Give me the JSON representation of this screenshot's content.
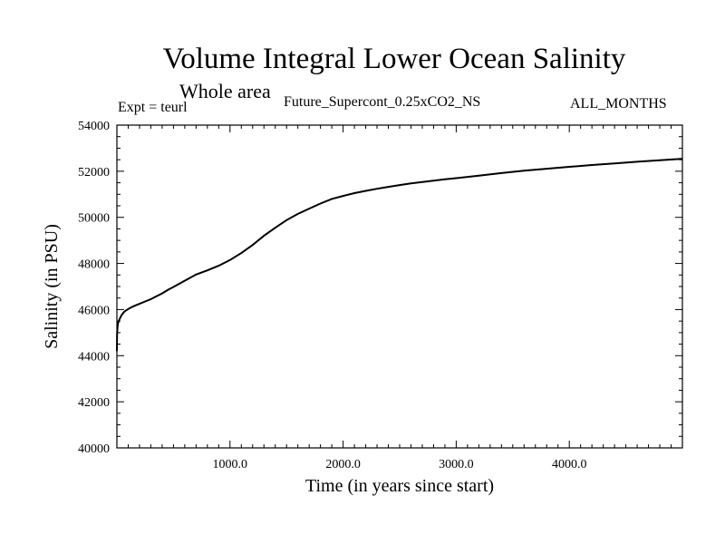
{
  "header": {
    "title": "Volume Integral Lower Ocean Salinity",
    "subtitle": "Whole area",
    "experiment": "Expt = teurl",
    "run_name": "Future_Supercont_0.25xCO2_NS",
    "months": "ALL_MONTHS"
  },
  "chart_data": {
    "type": "line",
    "title": "Volume Integral Lower Ocean Salinity",
    "xlabel": "Time (in years since start)",
    "ylabel": "Salinity (in PSU)",
    "xlim": [
      0,
      5000
    ],
    "ylim": [
      40000,
      54000
    ],
    "x_ticks": [
      1000,
      2000,
      3000,
      4000
    ],
    "x_tick_labels": [
      "1000.0",
      "2000.0",
      "3000.0",
      "4000.0"
    ],
    "y_ticks": [
      40000,
      42000,
      44000,
      46000,
      48000,
      50000,
      52000,
      54000
    ],
    "y_tick_labels": [
      "40000",
      "42000",
      "44000",
      "46000",
      "48000",
      "50000",
      "52000",
      "54000"
    ],
    "grid": false,
    "series": [
      {
        "color": "#000000",
        "x": [
          0,
          2,
          5,
          10,
          20,
          40,
          60,
          80,
          120,
          160,
          200,
          250,
          300,
          350,
          400,
          450,
          500,
          600,
          700,
          800,
          900,
          1000,
          1100,
          1200,
          1300,
          1400,
          1500,
          1600,
          1700,
          1800,
          1900,
          2000,
          2100,
          2200,
          2300,
          2400,
          2500,
          2600,
          2700,
          2800,
          2900,
          3000,
          3200,
          3400,
          3600,
          3800,
          4000,
          4200,
          4400,
          4600,
          4800,
          5000
        ],
        "y": [
          44200,
          44900,
          45200,
          45400,
          45550,
          45750,
          45880,
          45960,
          46080,
          46170,
          46250,
          46350,
          46450,
          46580,
          46700,
          46850,
          46980,
          47250,
          47520,
          47700,
          47900,
          48150,
          48450,
          48800,
          49200,
          49550,
          49880,
          50150,
          50380,
          50600,
          50800,
          50930,
          51050,
          51150,
          51240,
          51320,
          51400,
          51470,
          51530,
          51590,
          51650,
          51700,
          51810,
          51920,
          52020,
          52110,
          52190,
          52270,
          52340,
          52410,
          52480,
          52540
        ]
      }
    ]
  }
}
